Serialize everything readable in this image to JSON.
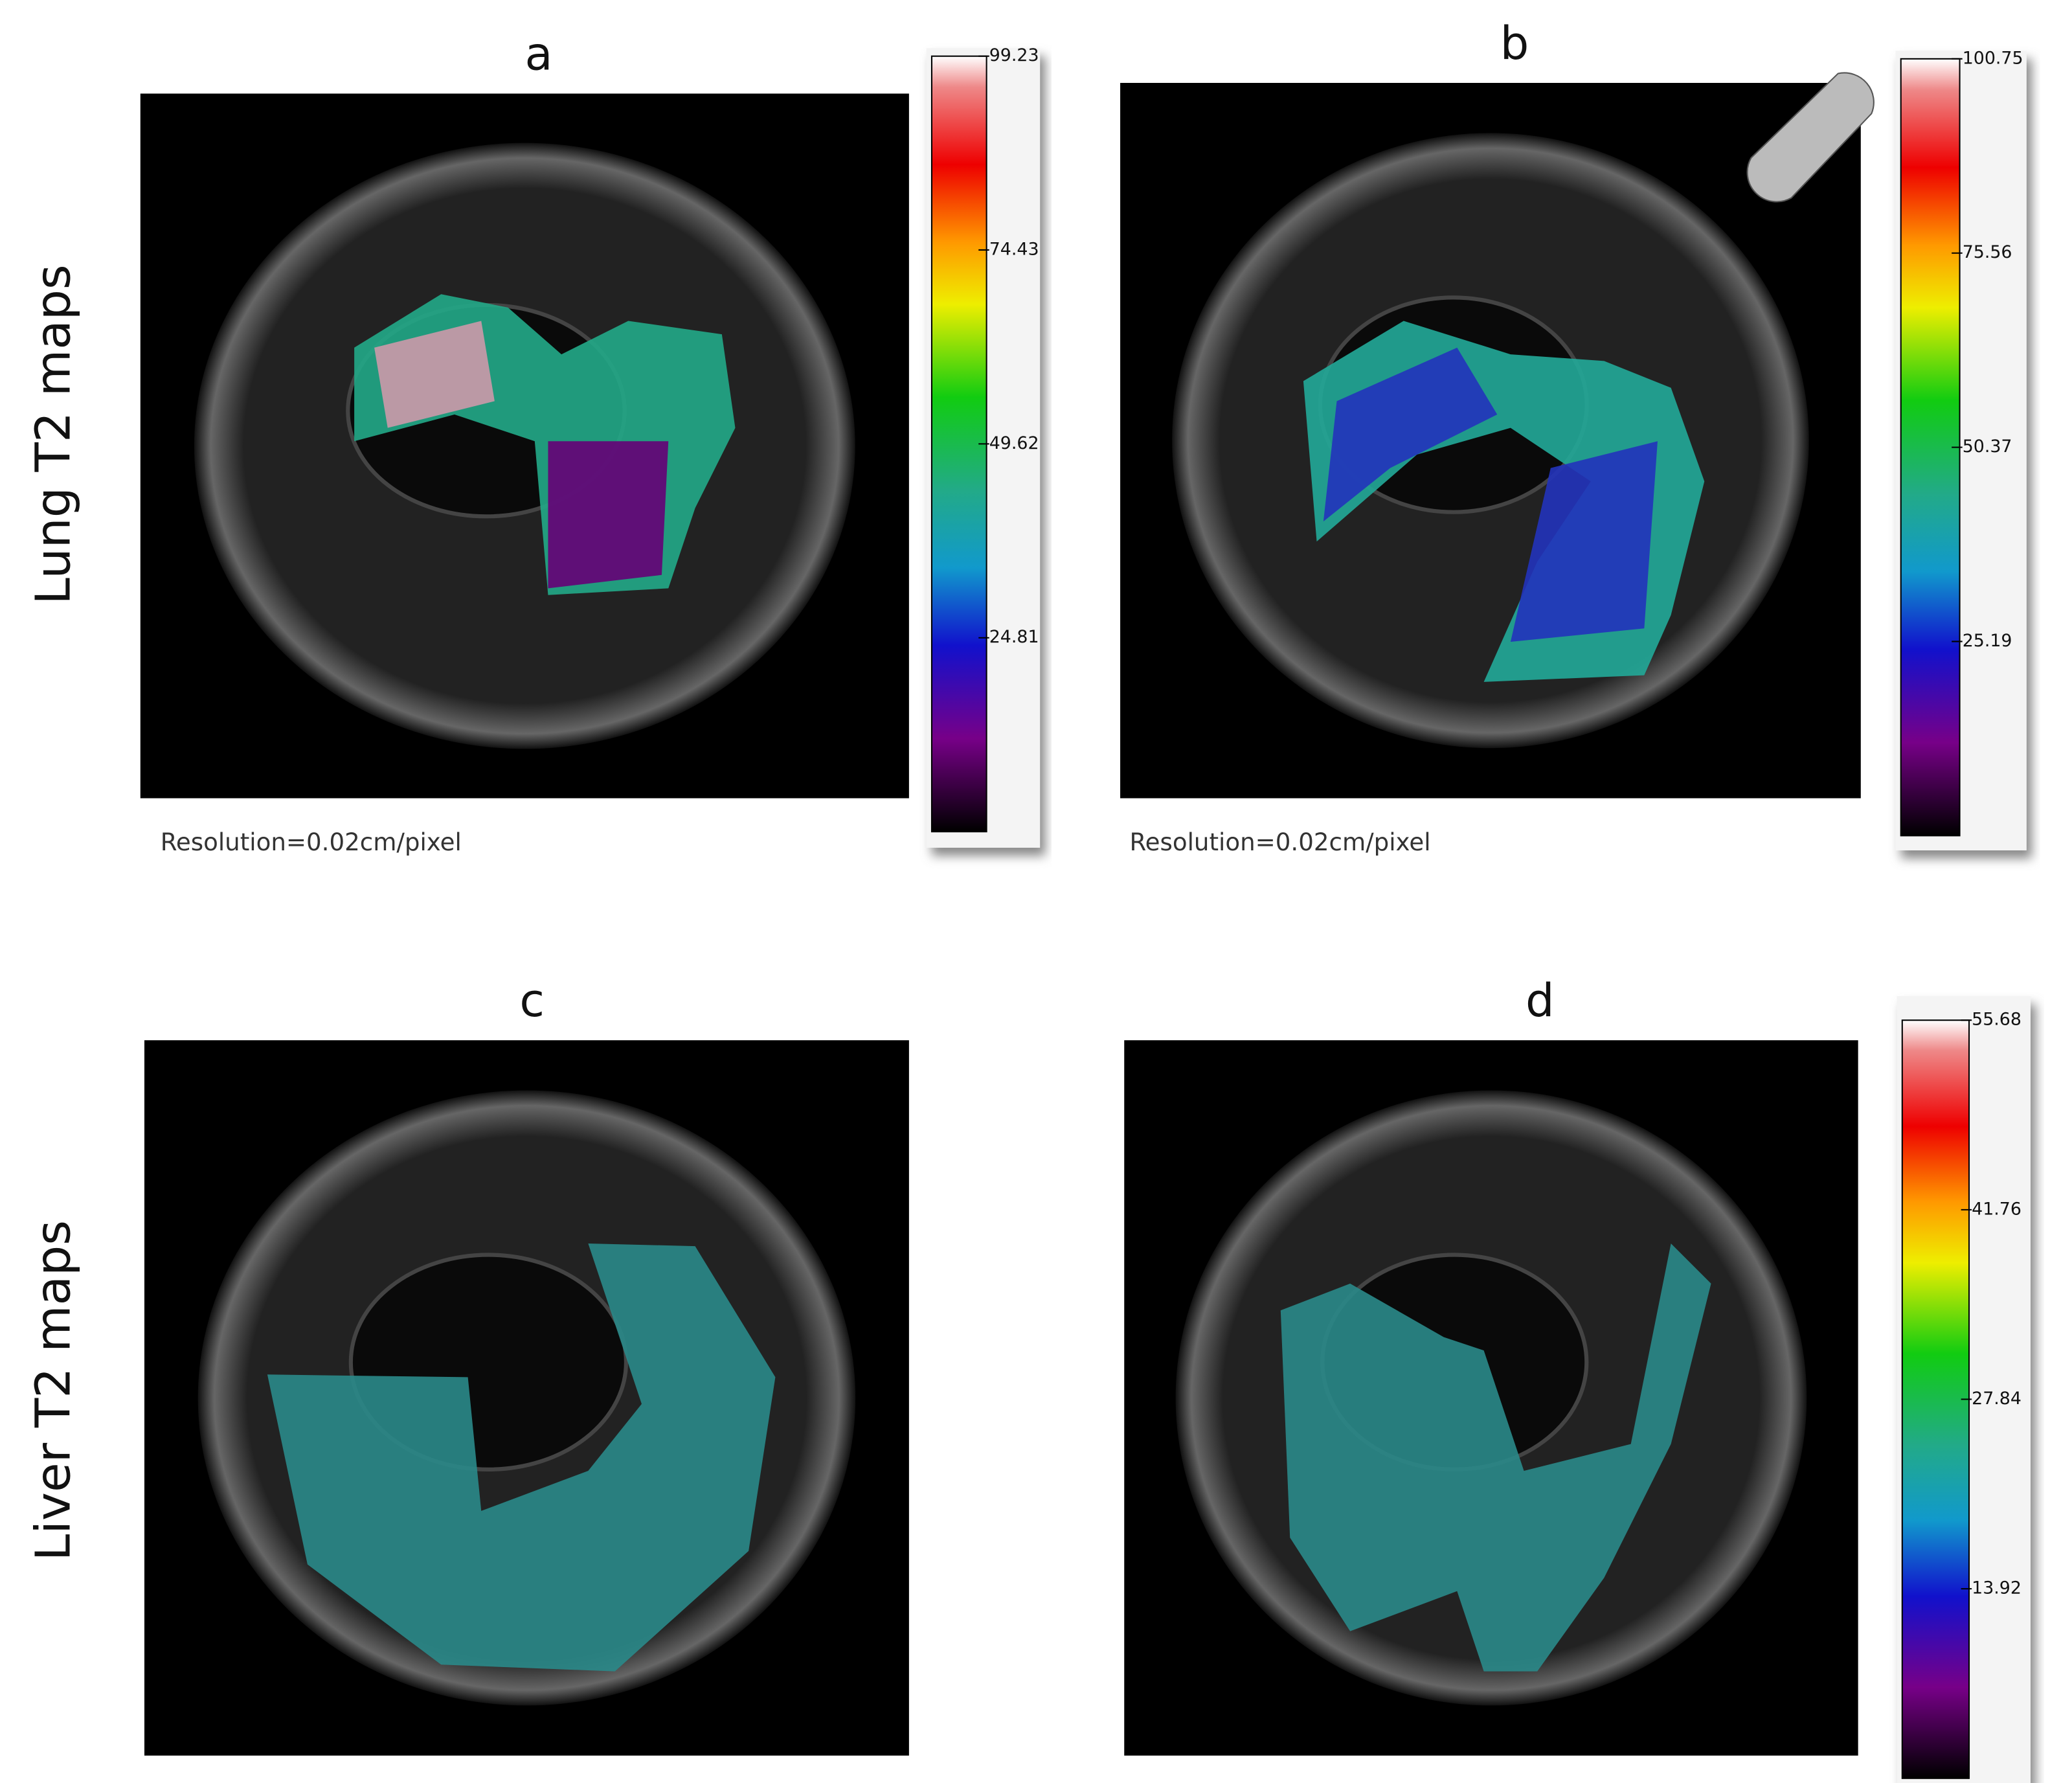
{
  "row_labels": [
    "Lung T2 maps",
    "Liver T2 maps"
  ],
  "panels": [
    {
      "label": "a",
      "colorbar_ticks": [
        99.23,
        74.43,
        49.62,
        24.81
      ],
      "caption": "Resolution=0.02cm/pixel"
    },
    {
      "label": "b",
      "colorbar_ticks": [
        100.75,
        75.56,
        50.37,
        25.19
      ],
      "caption": "Resolution=0.02cm/pixel"
    },
    {
      "label": "c"
    },
    {
      "label": "d",
      "colorbar_ticks": [
        55.68,
        41.76,
        27.84,
        13.92
      ]
    }
  ]
}
